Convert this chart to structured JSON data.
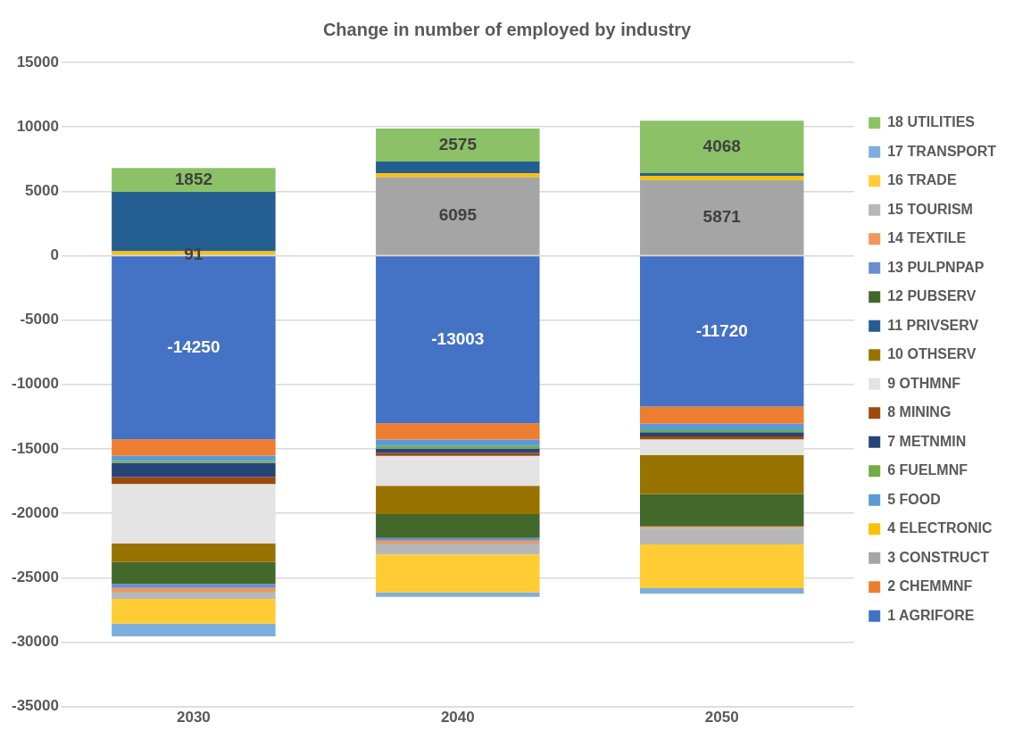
{
  "chart_data": {
    "type": "bar",
    "title": "Change in number of employed by industry",
    "categories": [
      "2030",
      "2040",
      "2050"
    ],
    "stacked": true,
    "ylim": [
      -35000,
      15000
    ],
    "yticks": [
      -35000,
      -30000,
      -25000,
      -20000,
      -15000,
      -10000,
      -5000,
      0,
      5000,
      10000,
      15000
    ],
    "grid": "y",
    "legend": "right",
    "series": [
      {
        "name": "1 AGRIFORE",
        "color": "#4472c4",
        "values": [
          -14250,
          -13003,
          -11720
        ],
        "value_labels": [
          "-14250",
          "-13003",
          "-11720"
        ]
      },
      {
        "name": "2 CHEMMNF",
        "color": "#ed7d31",
        "values": [
          -1280,
          -1280,
          -1330
        ]
      },
      {
        "name": "3 CONSTRUCT",
        "color": "#a5a5a5",
        "values": [
          91,
          6095,
          5871
        ],
        "value_labels": [
          "91",
          "6095",
          "5871"
        ]
      },
      {
        "name": "4 ELECTRONIC",
        "color": "#ffc000",
        "values": [
          260,
          300,
          330
        ]
      },
      {
        "name": "5 FOOD",
        "color": "#5b9bd5",
        "values": [
          -400,
          -500,
          -490
        ]
      },
      {
        "name": "6 FUELMNF",
        "color": "#70ad47",
        "values": [
          -170,
          -180,
          -160
        ]
      },
      {
        "name": "7 METNMIN",
        "color": "#264478",
        "values": [
          -1080,
          -350,
          -330
        ]
      },
      {
        "name": "8 MINING",
        "color": "#9e480e",
        "values": [
          -550,
          -230,
          -230
        ]
      },
      {
        "name": "9 OTHMNF",
        "color": "#e4e4e4",
        "values": [
          -4620,
          -2310,
          -1210
        ]
      },
      {
        "name": "10 OTHSERV",
        "color": "#997300",
        "values": [
          -1430,
          -2210,
          -3040
        ]
      },
      {
        "name": "11 PRIVSERV",
        "color": "#255e91",
        "values": [
          4600,
          910,
          210
        ]
      },
      {
        "name": "12 PUBSERV",
        "color": "#43682b",
        "values": [
          -1710,
          -1860,
          -2500
        ]
      },
      {
        "name": "13 PULPNPAP",
        "color": "#698ed0",
        "values": [
          -300,
          -200,
          null
        ]
      },
      {
        "name": "14 TEXTILE",
        "color": "#f1975a",
        "values": [
          -300,
          -230,
          -100
        ]
      },
      {
        "name": "15 TOURISM",
        "color": "#b7b7b7",
        "values": [
          -550,
          -850,
          -1310
        ]
      },
      {
        "name": "16 TRADE",
        "color": "#ffcd33",
        "values": [
          -1930,
          -2940,
          -3390
        ]
      },
      {
        "name": "17 TRANSPORT",
        "color": "#7cafdd",
        "values": [
          -980,
          -350,
          -440
        ]
      },
      {
        "name": "18 UTILITIES",
        "color": "#8cc168",
        "values": [
          1852,
          2575,
          4068
        ],
        "value_labels": [
          "1852",
          "2575",
          "4068"
        ]
      }
    ]
  }
}
